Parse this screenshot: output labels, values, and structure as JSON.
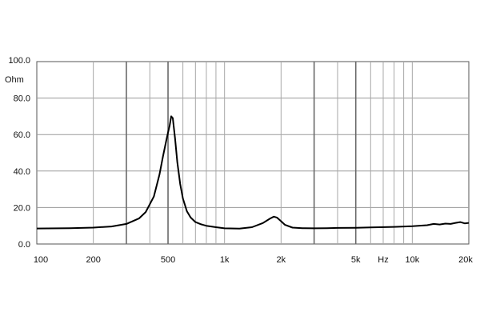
{
  "chart_data": {
    "type": "line",
    "title": "",
    "xlabel": "",
    "ylabel": "",
    "x_scale": "log",
    "xlim": [
      100,
      20000
    ],
    "ylim": [
      0,
      100
    ],
    "grid": true,
    "y_unit": "Ohm",
    "x_unit": "Hz",
    "y_ticks": [
      "0.0",
      "20.0",
      "40.0",
      "60.0",
      "80.0",
      "100.0"
    ],
    "y_tick_values": [
      0,
      20,
      40,
      60,
      80,
      100
    ],
    "x_ticks": [
      {
        "label": "100",
        "value": 100
      },
      {
        "label": "200",
        "value": 200
      },
      {
        "label": "500",
        "value": 500
      },
      {
        "label": "1k",
        "value": 1000
      },
      {
        "label": "2k",
        "value": 2000
      },
      {
        "label": "5k",
        "value": 5000
      },
      {
        "label": "Hz",
        "value": 7000
      },
      {
        "label": "10k",
        "value": 10000
      },
      {
        "label": "20k",
        "value": 20000
      }
    ],
    "x_grid_values": [
      200,
      300,
      400,
      500,
      600,
      700,
      800,
      900,
      1000,
      2000,
      3000,
      4000,
      5000,
      6000,
      7000,
      8000,
      9000,
      10000
    ],
    "series": [
      {
        "color": "#000000",
        "x": [
          100,
          150,
          200,
          250,
          300,
          350,
          380,
          420,
          450,
          470,
          490,
          500,
          510,
          520,
          530,
          545,
          560,
          580,
          600,
          630,
          660,
          700,
          750,
          800,
          900,
          1000,
          1200,
          1400,
          1600,
          1750,
          1830,
          1900,
          2000,
          2100,
          2300,
          2600,
          3000,
          3500,
          4000,
          5000,
          6000,
          8000,
          10000,
          12000,
          13000,
          14000,
          15000,
          16000,
          17000,
          18000,
          19000,
          20000
        ],
        "values": [
          8.5,
          8.7,
          9.0,
          9.6,
          11.0,
          14.0,
          17.5,
          26.0,
          38.0,
          48.0,
          57.0,
          61.0,
          65.0,
          70.0,
          69.0,
          58.0,
          45.0,
          33.0,
          25.0,
          18.0,
          14.5,
          12.0,
          10.8,
          10.0,
          9.2,
          8.6,
          8.4,
          9.2,
          11.5,
          14.0,
          15.0,
          14.5,
          12.5,
          10.5,
          9.0,
          8.7,
          8.6,
          8.7,
          8.8,
          8.9,
          9.1,
          9.4,
          9.8,
          10.3,
          11.0,
          10.7,
          11.2,
          11.0,
          11.6,
          12.0,
          11.3,
          11.6
        ]
      }
    ]
  }
}
